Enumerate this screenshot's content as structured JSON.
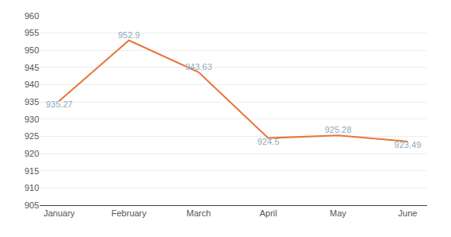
{
  "chart_data": {
    "type": "line",
    "categories": [
      "January",
      "February",
      "March",
      "April",
      "May",
      "June"
    ],
    "values": [
      935.27,
      952.9,
      943.63,
      924.5,
      925.28,
      923.49
    ],
    "color": "#E8763A",
    "ylim": [
      905,
      960
    ],
    "yticks": [
      905,
      910,
      915,
      920,
      925,
      930,
      935,
      940,
      945,
      950,
      955,
      960
    ],
    "grid": true,
    "data_labels": true
  }
}
